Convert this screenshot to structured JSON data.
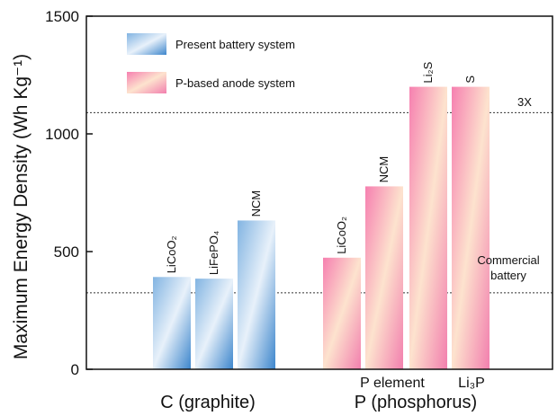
{
  "chart_data": {
    "type": "bar",
    "ylabel": "Maximum Energy Density (Wh Kg⁻¹)",
    "ylim": [
      0,
      1500
    ],
    "yticks": [
      "0",
      "500",
      "1000",
      "1500"
    ],
    "ytick_values": [
      0,
      500,
      1000,
      1500
    ],
    "legend": [
      {
        "name": "Present battery system",
        "color": "#4a8fd0"
      },
      {
        "name": "P-based anode system",
        "color": "#f78fb7"
      }
    ],
    "groups": [
      {
        "label": "C (graphite)",
        "color": "#4a8fd0",
        "bars": [
          {
            "label": "LiCoO₂",
            "value": 392
          },
          {
            "label": "LiFePO₄",
            "value": 385
          },
          {
            "label": "NCM",
            "value": 632
          }
        ]
      },
      {
        "label": "P (phosphorus)",
        "color": "#f27fae",
        "bars": [
          {
            "label": "LiCoO₂",
            "value": 474
          },
          {
            "label": "NCM",
            "value": 777
          },
          {
            "label": "Li₂S",
            "value": 1200
          },
          {
            "label": "S",
            "value": 1200
          }
        ]
      }
    ],
    "reference_lines": [
      {
        "value": 1090,
        "label": "3X"
      },
      {
        "value": 325,
        "label_lines": [
          "Commercial",
          "battery"
        ]
      }
    ],
    "bottom_labels": [
      "P element",
      "Li₃P"
    ]
  }
}
